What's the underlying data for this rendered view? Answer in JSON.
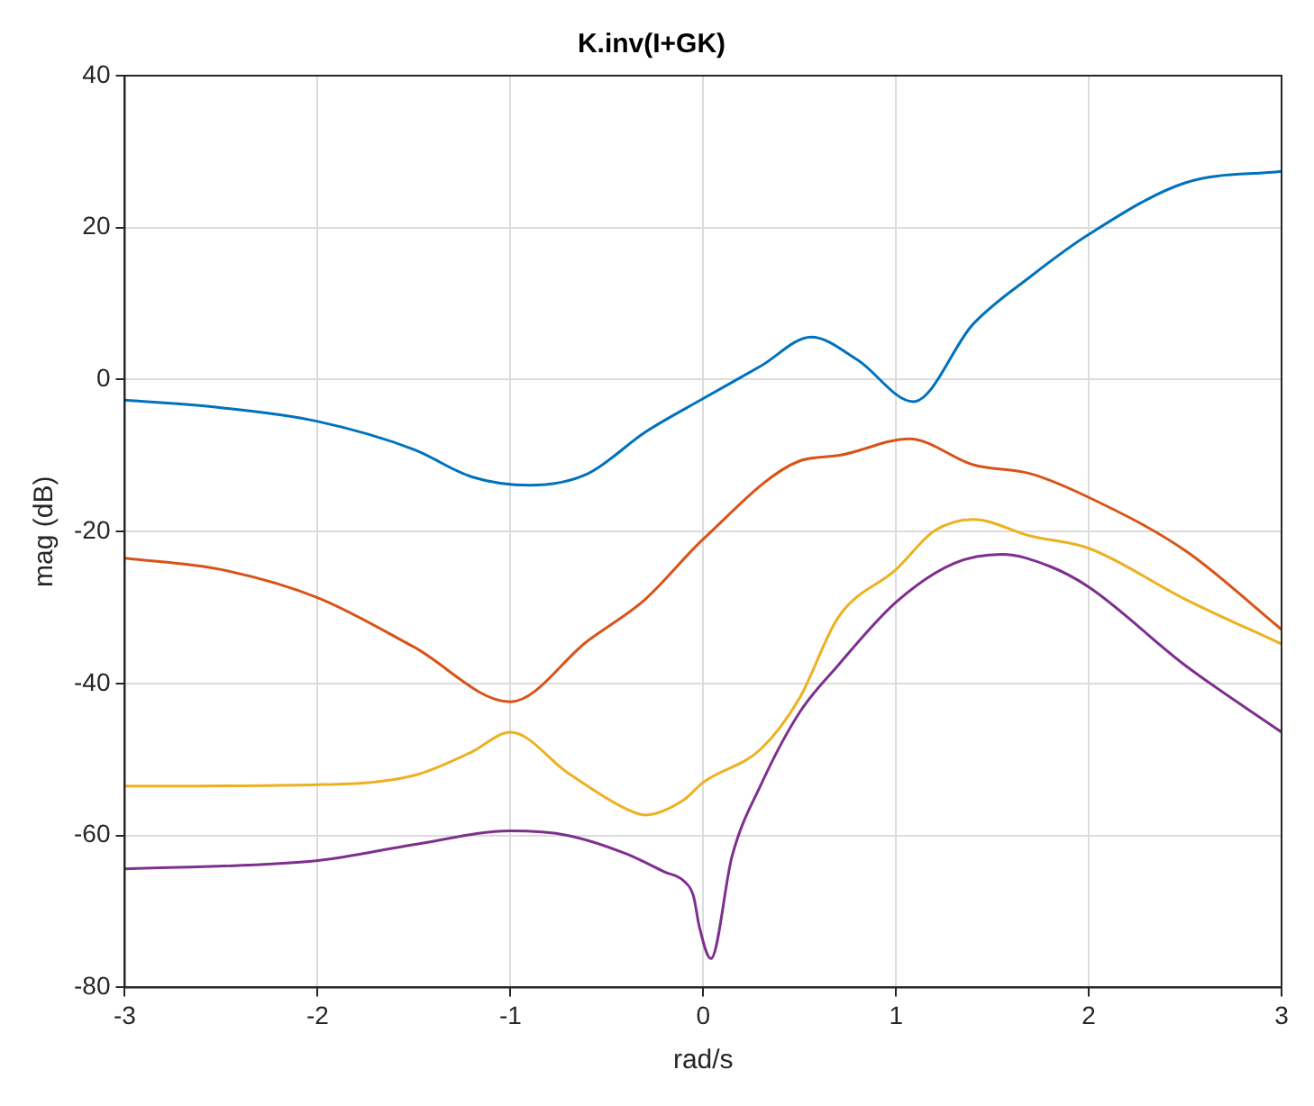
{
  "chart_data": {
    "type": "line",
    "title": "K.inv(I+GK)",
    "xlabel": "rad/s",
    "ylabel": "mag (dB)",
    "xlim": [
      -3,
      3
    ],
    "ylim": [
      -80,
      40
    ],
    "xticks": [
      -3,
      -2,
      -1,
      0,
      1,
      2,
      3
    ],
    "yticks": [
      -80,
      -60,
      -40,
      -20,
      0,
      20,
      40
    ],
    "grid": true,
    "legend": false,
    "marker": "none",
    "line_style": "solid",
    "series": [
      {
        "color": "#0072bd",
        "x": [
          -3,
          -2.5,
          -2,
          -1.5,
          -1.2,
          -0.9,
          -0.6,
          -0.3,
          0,
          0.3,
          0.56,
          0.8,
          1.09,
          1.4,
          1.7,
          2,
          2.5,
          3
        ],
        "values": [
          -2.7,
          -3.7,
          -5.5,
          -9.2,
          -12.8,
          -13.9,
          -12.4,
          -6.9,
          -2.5,
          1.8,
          5.6,
          2.6,
          -2.9,
          7.3,
          13.6,
          19.1,
          25.9,
          27.4
        ]
      },
      {
        "color": "#d95319",
        "x": [
          -3,
          -2.5,
          -2,
          -1.5,
          -1,
          -0.6,
          -0.3,
          0,
          0.5,
          0.7,
          1.07,
          1.4,
          1.7,
          2,
          2.5,
          3
        ],
        "values": [
          -23.5,
          -25,
          -28.7,
          -35.2,
          -42.4,
          -34.4,
          -28.9,
          -21,
          -10.7,
          -10,
          -7.8,
          -11.2,
          -12.4,
          -15.5,
          -22.5,
          -32.9
        ]
      },
      {
        "color": "#edb120",
        "x": [
          -3,
          -2,
          -1.5,
          -1.2,
          -1,
          -0.7,
          -0.4,
          -0.3,
          -0.1,
          0,
          0.3,
          0.5,
          0.7,
          1,
          1.2,
          1.4,
          1.7,
          2,
          2.5,
          3
        ],
        "values": [
          -53.5,
          -53.3,
          -52.1,
          -49,
          -46.4,
          -51.8,
          -56.5,
          -57.3,
          -55.3,
          -53,
          -48.6,
          -41.9,
          -31.3,
          -25,
          -19.9,
          -18.4,
          -20.6,
          -22.2,
          -28.9,
          -34.8
        ]
      },
      {
        "color": "#7e2f8e",
        "x": [
          -3,
          -2,
          -1.5,
          -1,
          -0.7,
          -0.4,
          -0.2,
          -0.1,
          -0.05,
          -0.02,
          0.04,
          0.15,
          0.3,
          0.5,
          0.7,
          1,
          1.3,
          1.55,
          1.8,
          2,
          2.5,
          3
        ],
        "values": [
          -64.4,
          -63.3,
          -61.2,
          -59.4,
          -60,
          -62.4,
          -64.8,
          -66,
          -68,
          -72,
          -76.2,
          -62.7,
          -53.3,
          -43.8,
          -37.6,
          -29.3,
          -24.2,
          -23,
          -24.6,
          -27.3,
          -37.6,
          -46.4
        ]
      }
    ]
  }
}
